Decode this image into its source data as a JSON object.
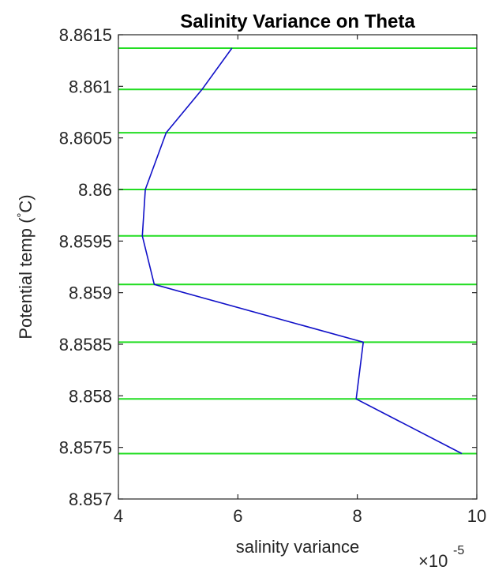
{
  "chart_data": {
    "type": "line",
    "title": "Salinity Variance on Theta",
    "xlabel": "salinity variance",
    "ylabel_main": "Potential temp (",
    "ylabel_degree": "°",
    "ylabel_unit": "C)",
    "x_multiplier": {
      "base": "×10",
      "exponent": "-5"
    },
    "xlim": [
      4,
      10
    ],
    "ylim": [
      8.857,
      8.8615
    ],
    "x_ticks": [
      4,
      6,
      8,
      10
    ],
    "x_tick_labels": [
      "4",
      "6",
      "8",
      "10"
    ],
    "y_ticks": [
      8.857,
      8.8575,
      8.858,
      8.8585,
      8.859,
      8.8595,
      8.86,
      8.8605,
      8.861,
      8.8615
    ],
    "y_tick_labels": [
      "8.857",
      "8.8575",
      "8.858",
      "8.8585",
      "8.859",
      "8.8595",
      "8.86",
      "8.8605",
      "8.861",
      "8.8615"
    ],
    "grid": false,
    "series": [
      {
        "color": "#1010c8",
        "x": [
          5.9,
          5.4,
          4.8,
          4.45,
          4.4,
          4.6,
          8.1,
          7.98,
          9.75
        ],
        "y": [
          8.86137,
          8.86097,
          8.86055,
          8.86,
          8.85955,
          8.85908,
          8.85852,
          8.85797,
          8.85744
        ]
      }
    ],
    "reference_lines": {
      "color": "#22dd22",
      "orientation": "horizontal",
      "y": [
        8.86137,
        8.86097,
        8.86055,
        8.86,
        8.85955,
        8.85908,
        8.85852,
        8.85797,
        8.85744
      ]
    }
  }
}
